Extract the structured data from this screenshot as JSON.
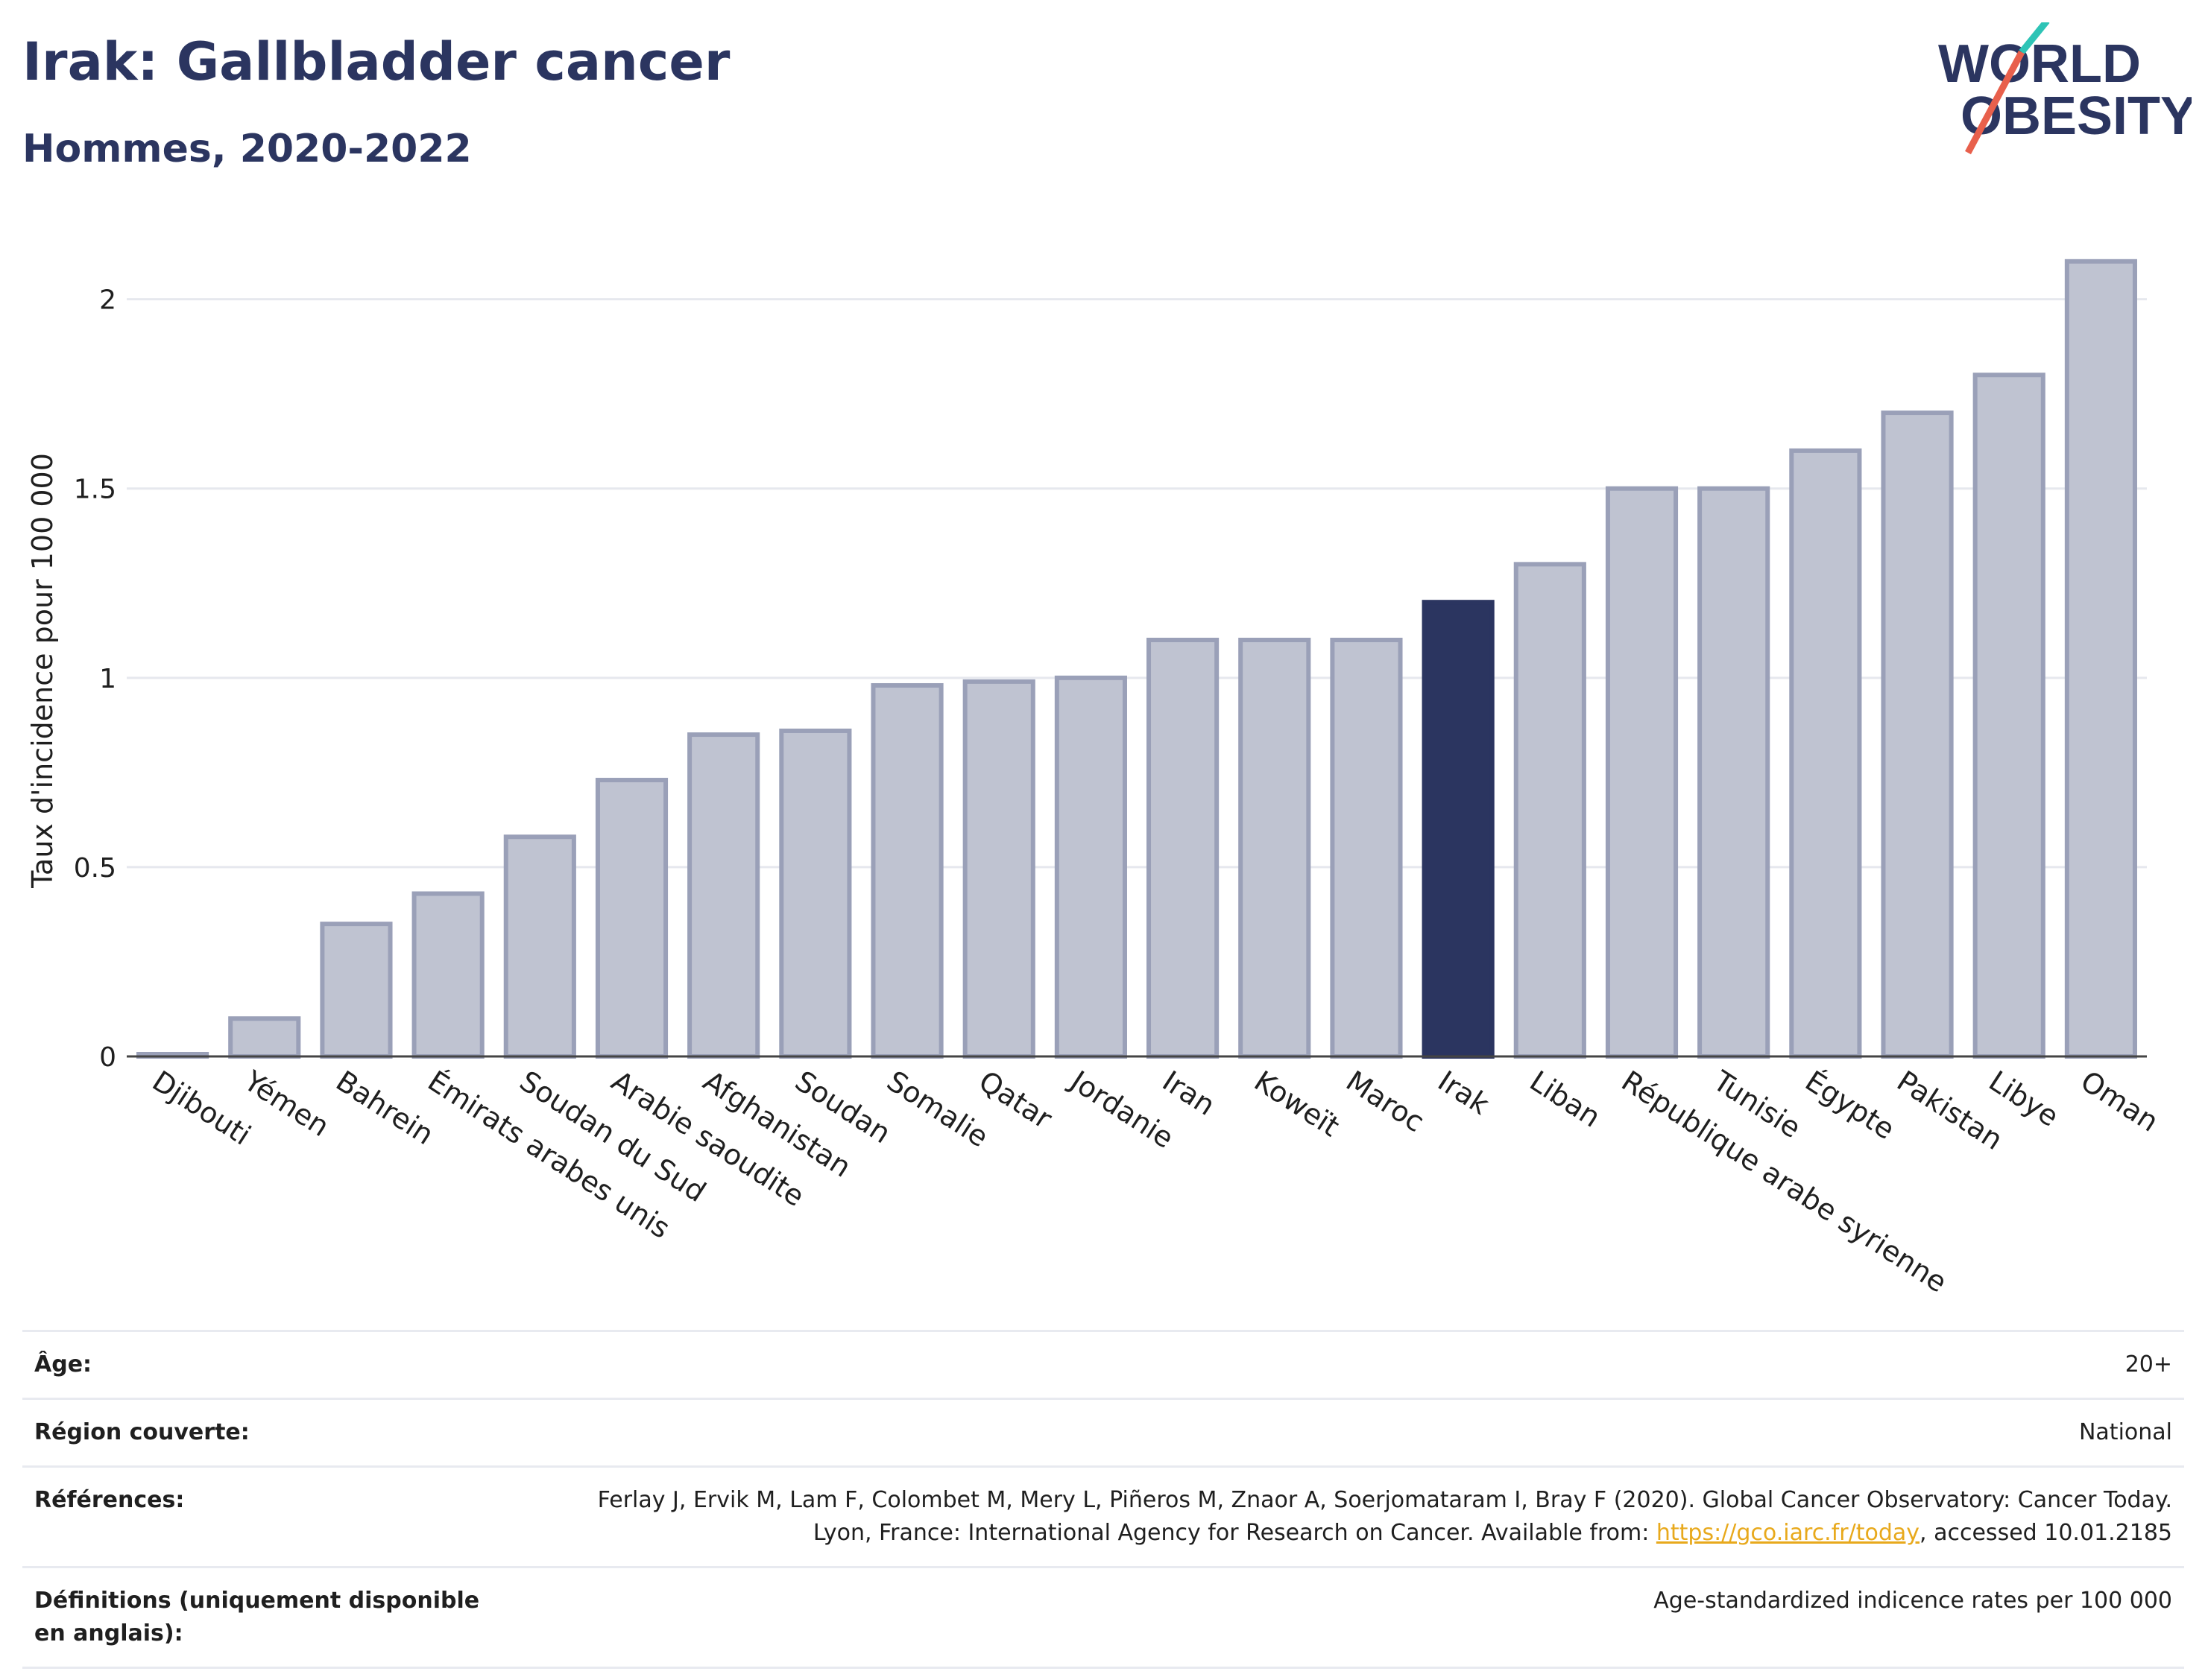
{
  "header": {
    "title": "Irak: Gallbladder cancer",
    "subtitle": "Hommes, 2020-2022"
  },
  "logo": {
    "line1": "WORLD",
    "line2": "OBESITY",
    "accent_teal": "#2ec4b6",
    "accent_red": "#e8604c",
    "text_color": "#2b3560"
  },
  "colors": {
    "bar": "#bfc3d1",
    "bar_stroke": "#9aa0b8",
    "highlight": "#2b3560",
    "grid": "#e6e8ee",
    "axis": "#444444"
  },
  "chart_data": {
    "type": "bar",
    "title": "Irak: Gallbladder cancer",
    "subtitle": "Hommes, 2020-2022",
    "xlabel": "",
    "ylabel": "Taux d'incidence pour 100 000",
    "ylim": [
      0,
      2.2
    ],
    "yticks": [
      0,
      0.5,
      1,
      1.5,
      2
    ],
    "ytick_labels": [
      "0",
      "0.5",
      "1",
      "1.5",
      "2"
    ],
    "grid": true,
    "highlight_category": "Irak",
    "categories": [
      "Djibouti",
      "Yémen",
      "Bahrein",
      "Émirats arabes unis",
      "Soudan du Sud",
      "Arabie saoudite",
      "Afghanistan",
      "Soudan",
      "Somalie",
      "Qatar",
      "Jordanie",
      "Iran",
      "Koweït",
      "Maroc",
      "Irak",
      "Liban",
      "République arabe syrienne",
      "Tunisie",
      "Égypte",
      "Pakistan",
      "Libye",
      "Oman"
    ],
    "values": [
      0.0,
      0.1,
      0.35,
      0.43,
      0.58,
      0.73,
      0.85,
      0.86,
      0.98,
      0.99,
      1.0,
      1.1,
      1.1,
      1.1,
      1.2,
      1.3,
      1.5,
      1.5,
      1.6,
      1.7,
      1.8,
      2.1
    ]
  },
  "info": {
    "rows": [
      {
        "key": "Âge:",
        "value": "20+"
      },
      {
        "key": "Région couverte:",
        "value": "National"
      },
      {
        "key": "Références:",
        "value_before": "Ferlay J, Ervik M, Lam F, Colombet M, Mery L, Piñeros M, Znaor A, Soerjomataram I, Bray F (2020). Global Cancer Observatory: Cancer Today. Lyon, France: International Agency for Research on Cancer. Available from: ",
        "link": "https://gco.iarc.fr/today",
        "value_after": ", accessed 10.01.2185"
      },
      {
        "key": "Définitions (uniquement disponible en anglais):",
        "value": "Age-standardized indicence rates per 100 000"
      }
    ]
  }
}
